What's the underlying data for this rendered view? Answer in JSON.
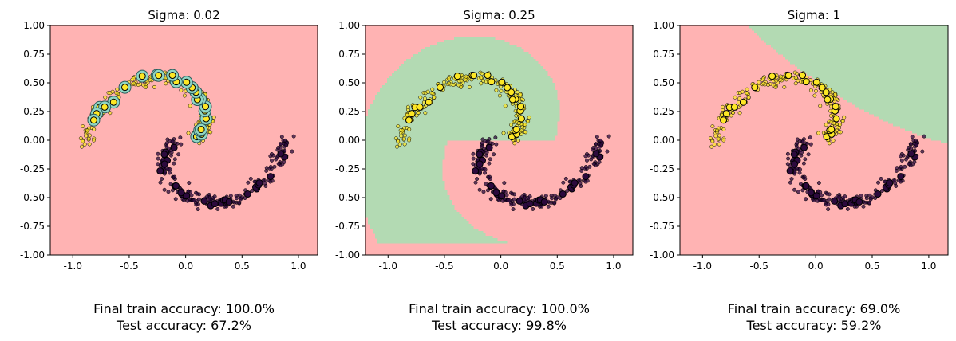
{
  "colors": {
    "region_class0": "#ffb3b3",
    "region_class1": "#b3dab3",
    "class0_fill": "#2c0a3d",
    "class1_fill": "#fde725",
    "support_ring": "#8fd6c4",
    "boundary": "#2e6b2e"
  },
  "chart_data": [
    {
      "type": "scatter",
      "title": "Sigma: 0.02",
      "sigma": 0.02,
      "xlim": [
        -1.2,
        1.17
      ],
      "ylim": [
        -1.0,
        1.0
      ],
      "xticks": [
        "-1.0",
        "-0.5",
        "0.0",
        "0.5",
        "1.0"
      ],
      "xtick_values": [
        -1.0,
        -0.5,
        0.0,
        0.5,
        1.0
      ],
      "yticks": [
        "1.00",
        "0.75",
        "0.50",
        "0.25",
        "0.00",
        "-0.25",
        "-0.50",
        "-0.75",
        "-1.00"
      ],
      "ytick_values": [
        1.0,
        0.75,
        0.5,
        0.25,
        0.0,
        -0.25,
        -0.5,
        -0.75,
        -1.0
      ],
      "decision_region": "all class 0 (red)",
      "caption_train": "Final train accuracy: 100.0%",
      "caption_test": "Test accuracy: 67.2%"
    },
    {
      "type": "scatter",
      "title": "Sigma: 0.25",
      "sigma": 0.25,
      "xlim": [
        -1.2,
        1.17
      ],
      "ylim": [
        -1.0,
        1.0
      ],
      "xticks": [
        "-1.0",
        "-0.5",
        "0.0",
        "0.5",
        "1.0"
      ],
      "xtick_values": [
        -1.0,
        -0.5,
        0.0,
        0.5,
        1.0
      ],
      "yticks": [
        "1.00",
        "0.75",
        "0.50",
        "0.25",
        "0.00",
        "-0.25",
        "-0.50",
        "-0.75",
        "-1.00"
      ],
      "ytick_values": [
        1.0,
        0.75,
        0.5,
        0.25,
        0.0,
        -0.25,
        -0.5,
        -0.75,
        -1.0
      ],
      "decision_region": "spiral boundary separating both classes",
      "caption_train": "Final train accuracy: 100.0%",
      "caption_test": "Test accuracy: 99.8%"
    },
    {
      "type": "scatter",
      "title": "Sigma: 1",
      "sigma": 1,
      "xlim": [
        -1.2,
        1.17
      ],
      "ylim": [
        -1.0,
        1.0
      ],
      "xticks": [
        "-1.0",
        "-0.5",
        "0.0",
        "0.5",
        "1.0"
      ],
      "xtick_values": [
        -1.0,
        -0.5,
        0.0,
        0.5,
        1.0
      ],
      "yticks": [
        "1.00",
        "0.75",
        "0.50",
        "0.25",
        "0.00",
        "-0.25",
        "-0.50",
        "-0.75",
        "-1.00"
      ],
      "ytick_values": [
        1.0,
        0.75,
        0.5,
        0.25,
        0.0,
        -0.25,
        -0.5,
        -0.75,
        -1.0
      ],
      "decision_region": "smooth diagonal boundary, class 1 (green) top-right",
      "caption_train": "Final train accuracy: 69.0%",
      "caption_test": "Test accuracy: 59.2%"
    }
  ]
}
